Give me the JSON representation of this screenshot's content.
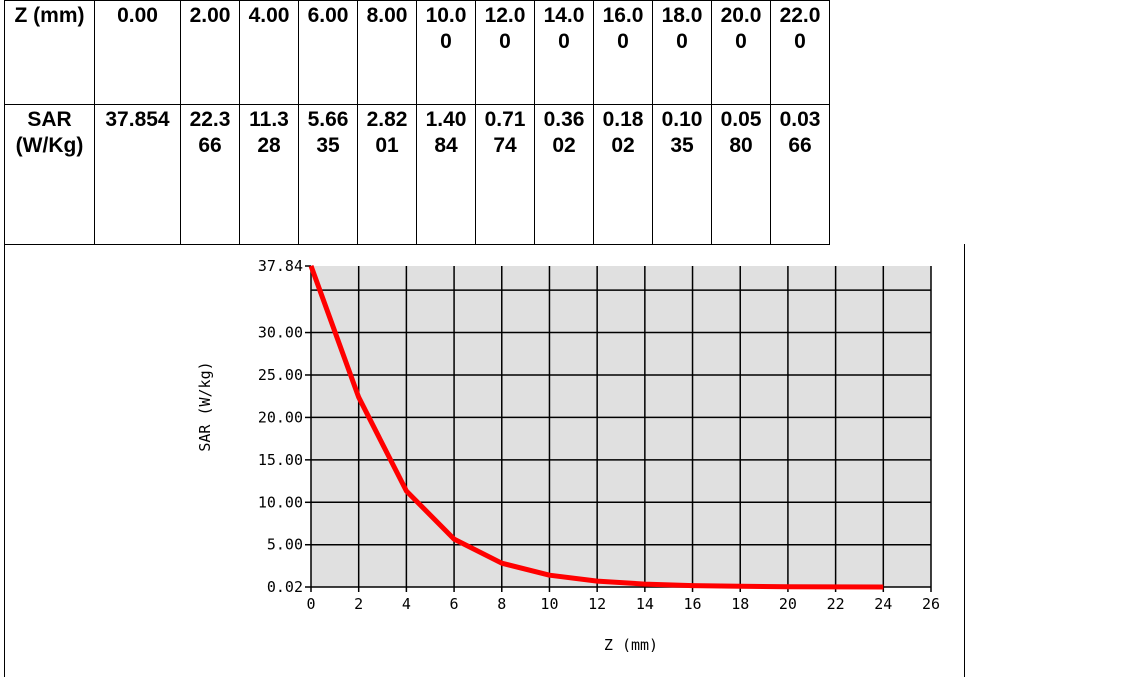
{
  "table": {
    "z_header": "Z (mm)",
    "sar_header": "SAR (W/Kg)",
    "z_values": [
      "0.00",
      "2.00",
      "4.00",
      "6.00",
      "8.00",
      "10.00",
      "12.00",
      "14.00",
      "16.00",
      "18.00",
      "20.00",
      "22.00"
    ],
    "sar_values": [
      "37.854",
      "22.366",
      "11.328",
      "5.6635",
      "2.8201",
      "1.4084",
      "0.7174",
      "0.3602",
      "0.1802",
      "0.1035",
      "0.0580",
      "0.0366"
    ]
  },
  "chart_data": {
    "type": "line",
    "xlabel": "Z (mm)",
    "ylabel": "SAR (W/kg)",
    "x_ticks": [
      "0",
      "2",
      "4",
      "6",
      "8",
      "10",
      "12",
      "14",
      "16",
      "18",
      "20",
      "22",
      "24",
      "26"
    ],
    "y_ticks": [
      "0.02",
      "5.00",
      "10.00",
      "15.00",
      "20.00",
      "25.00",
      "30.00",
      "37.84"
    ],
    "y_tick_values": [
      0.02,
      5,
      10,
      15,
      20,
      25,
      30,
      37.84
    ],
    "xlim": [
      0,
      26
    ],
    "ylim": [
      0.02,
      37.84
    ],
    "grid": true,
    "background": "#e0e0e0",
    "line_color": "#ff0000",
    "series": [
      {
        "x": [
          0,
          2,
          4,
          6,
          8,
          10,
          12,
          14,
          16,
          18,
          20,
          22,
          24
        ],
        "values": [
          37.854,
          22.366,
          11.328,
          5.6635,
          2.8201,
          1.4084,
          0.7174,
          0.3602,
          0.1802,
          0.1035,
          0.058,
          0.0366,
          0.02
        ]
      }
    ]
  }
}
